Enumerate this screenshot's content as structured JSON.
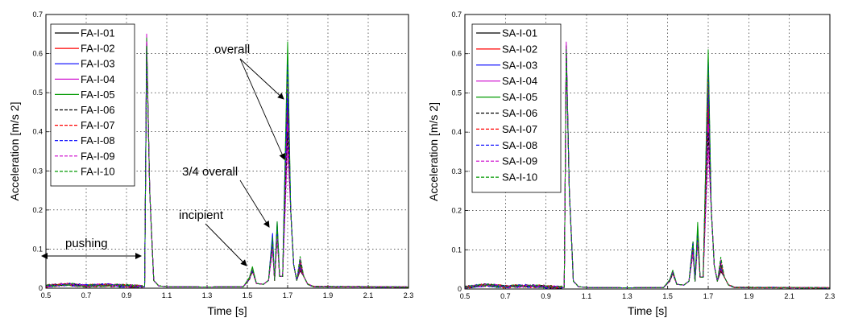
{
  "chart_data": [
    {
      "type": "line",
      "xlabel": "Time [s]",
      "ylabel": "Acceleration [m/s 2]",
      "xlim": [
        0.5,
        2.3
      ],
      "ylim": [
        0,
        0.7
      ],
      "xticks": [
        "0.5",
        "0.7",
        "0.9",
        "1.1",
        "1.3",
        "1.5",
        "1.7",
        "1.9",
        "2.1",
        "2.3"
      ],
      "yticks": [
        "0",
        "0.1",
        "0.2",
        "0.3",
        "0.4",
        "0.5",
        "0.6",
        "0.7"
      ],
      "grid": true,
      "legend_position": "top-left",
      "series": [
        {
          "name": "FA-I-01",
          "color": "#000000",
          "dash": "solid",
          "peaks": [
            0.62,
            0.045,
            0.13,
            0.16,
            0.45
          ]
        },
        {
          "name": "FA-I-02",
          "color": "#ff0000",
          "dash": "solid",
          "peaks": [
            0.63,
            0.048,
            0.12,
            0.15,
            0.47
          ]
        },
        {
          "name": "FA-I-03",
          "color": "#0000ff",
          "dash": "solid",
          "peaks": [
            0.63,
            0.05,
            0.14,
            0.17,
            0.5
          ]
        },
        {
          "name": "FA-I-04",
          "color": "#cc00cc",
          "dash": "solid",
          "peaks": [
            0.65,
            0.052,
            0.11,
            0.14,
            0.42
          ]
        },
        {
          "name": "FA-I-05",
          "color": "#009900",
          "dash": "solid",
          "peaks": [
            0.64,
            0.055,
            0.12,
            0.17,
            0.63
          ]
        },
        {
          "name": "FA-I-06",
          "color": "#000000",
          "dash": "dashed",
          "peaks": [
            0.61,
            0.043,
            0.1,
            0.13,
            0.4
          ]
        },
        {
          "name": "FA-I-07",
          "color": "#ff0000",
          "dash": "dashed",
          "peaks": [
            0.6,
            0.046,
            0.11,
            0.14,
            0.55
          ]
        },
        {
          "name": "FA-I-08",
          "color": "#0000ff",
          "dash": "dashed",
          "peaks": [
            0.62,
            0.047,
            0.12,
            0.15,
            0.58
          ]
        },
        {
          "name": "FA-I-09",
          "color": "#cc00cc",
          "dash": "dashed",
          "peaks": [
            0.63,
            0.049,
            0.1,
            0.13,
            0.36
          ]
        },
        {
          "name": "FA-I-10",
          "color": "#009900",
          "dash": "dashed",
          "peaks": [
            0.62,
            0.051,
            0.13,
            0.16,
            0.6
          ]
        }
      ],
      "annotations": [
        "overall",
        "3/4 overall",
        "incipient",
        "pushing"
      ]
    },
    {
      "type": "line",
      "xlabel": "Time [s]",
      "ylabel": "Acceleration [m/s 2]",
      "xlim": [
        0.5,
        2.3
      ],
      "ylim": [
        0,
        0.7
      ],
      "xticks": [
        "0.5",
        "0.7",
        "0.9",
        "1.1",
        "1.3",
        "1.5",
        "1.7",
        "1.9",
        "2.1",
        "2.3"
      ],
      "yticks": [
        "0",
        "0.1",
        "0.2",
        "0.3",
        "0.4",
        "0.5",
        "0.6",
        "0.7"
      ],
      "grid": true,
      "legend_position": "top-left",
      "series": [
        {
          "name": "SA-I-01",
          "color": "#000000",
          "dash": "solid",
          "peaks": [
            0.61,
            0.04,
            0.12,
            0.15,
            0.45
          ]
        },
        {
          "name": "SA-I-02",
          "color": "#ff0000",
          "dash": "solid",
          "peaks": [
            0.62,
            0.042,
            0.11,
            0.14,
            0.48
          ]
        },
        {
          "name": "SA-I-03",
          "color": "#0000ff",
          "dash": "solid",
          "peaks": [
            0.62,
            0.044,
            0.12,
            0.16,
            0.52
          ]
        },
        {
          "name": "SA-I-04",
          "color": "#cc00cc",
          "dash": "solid",
          "peaks": [
            0.63,
            0.046,
            0.1,
            0.13,
            0.42
          ]
        },
        {
          "name": "SA-I-05",
          "color": "#009900",
          "dash": "solid",
          "peaks": [
            0.62,
            0.048,
            0.11,
            0.17,
            0.61
          ]
        },
        {
          "name": "SA-I-06",
          "color": "#000000",
          "dash": "dashed",
          "peaks": [
            0.6,
            0.039,
            0.09,
            0.12,
            0.4
          ]
        },
        {
          "name": "SA-I-07",
          "color": "#ff0000",
          "dash": "dashed",
          "peaks": [
            0.6,
            0.041,
            0.1,
            0.13,
            0.55
          ]
        },
        {
          "name": "SA-I-08",
          "color": "#0000ff",
          "dash": "dashed",
          "peaks": [
            0.61,
            0.043,
            0.11,
            0.14,
            0.58
          ]
        },
        {
          "name": "SA-I-09",
          "color": "#cc00cc",
          "dash": "dashed",
          "peaks": [
            0.62,
            0.045,
            0.09,
            0.12,
            0.36
          ]
        },
        {
          "name": "SA-I-10",
          "color": "#009900",
          "dash": "dashed",
          "peaks": [
            0.61,
            0.047,
            0.12,
            0.15,
            0.59
          ]
        }
      ]
    }
  ]
}
